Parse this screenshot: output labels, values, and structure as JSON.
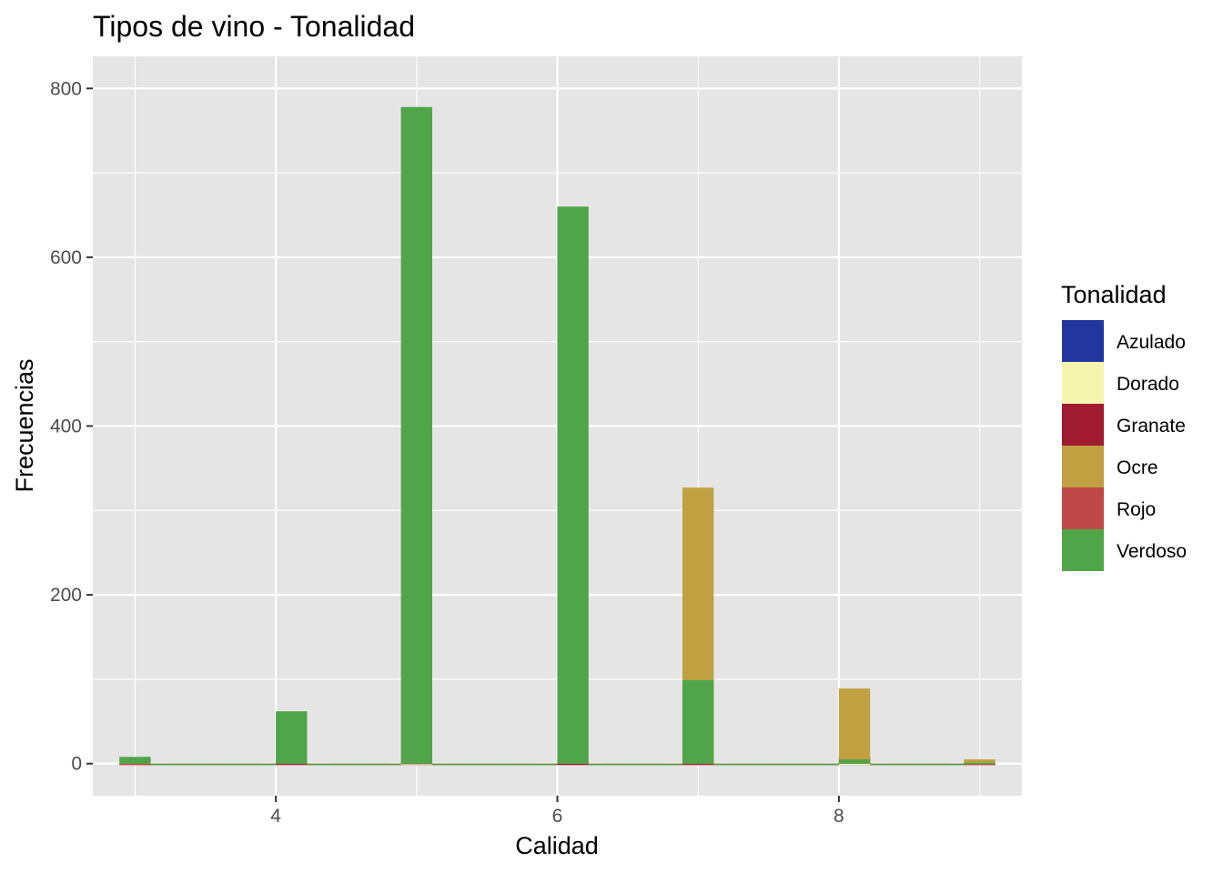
{
  "chart_data": {
    "type": "bar",
    "title": "Tipos de vino - Tonalidad",
    "xlabel": "Calidad",
    "ylabel": "Frecuencias",
    "xlim": [
      2.7,
      9.3
    ],
    "ylim": [
      -38,
      838
    ],
    "x_ticks": [
      4,
      6,
      8
    ],
    "y_ticks": [
      0,
      200,
      400,
      600,
      800
    ],
    "bin_width": 0.2222,
    "grid": true,
    "legend": {
      "title": "Tonalidad",
      "placement": "right"
    },
    "series": [
      {
        "name": "Azulado",
        "color": "#2336a0",
        "points": [
          [
            3,
            0
          ],
          [
            4,
            0
          ],
          [
            5,
            0
          ],
          [
            6,
            0
          ],
          [
            7,
            0
          ],
          [
            8,
            0
          ],
          [
            9,
            0
          ]
        ]
      },
      {
        "name": "Dorado",
        "color": "#f5f5b0",
        "points": [
          [
            3,
            0
          ],
          [
            4,
            0
          ],
          [
            5,
            0
          ],
          [
            6,
            0
          ],
          [
            7,
            0
          ],
          [
            8,
            0
          ],
          [
            9,
            0
          ]
        ]
      },
      {
        "name": "Granate",
        "color": "#a01a30",
        "points": [
          [
            3,
            0
          ],
          [
            4,
            0
          ],
          [
            5,
            1
          ],
          [
            6,
            0
          ],
          [
            7,
            0
          ],
          [
            8,
            8
          ],
          [
            9,
            0
          ]
        ]
      },
      {
        "name": "Ocre",
        "color": "#c0a040",
        "points": [
          [
            3,
            0
          ],
          [
            4,
            2
          ],
          [
            5,
            2
          ],
          [
            6,
            2
          ],
          [
            7,
            327
          ],
          [
            8,
            89
          ],
          [
            9,
            5
          ]
        ]
      },
      {
        "name": "Rojo",
        "color": "#c04848",
        "points": [
          [
            3,
            0
          ],
          [
            4,
            1
          ],
          [
            5,
            3
          ],
          [
            6,
            2
          ],
          [
            7,
            1
          ],
          [
            8,
            2
          ],
          [
            9,
            0
          ]
        ]
      },
      {
        "name": "Verdoso",
        "color": "#50a548",
        "points": [
          [
            3,
            8
          ],
          [
            4,
            62
          ],
          [
            5,
            778
          ],
          [
            6,
            660
          ],
          [
            7,
            99
          ],
          [
            8,
            5
          ],
          [
            9,
            1
          ]
        ]
      }
    ]
  }
}
